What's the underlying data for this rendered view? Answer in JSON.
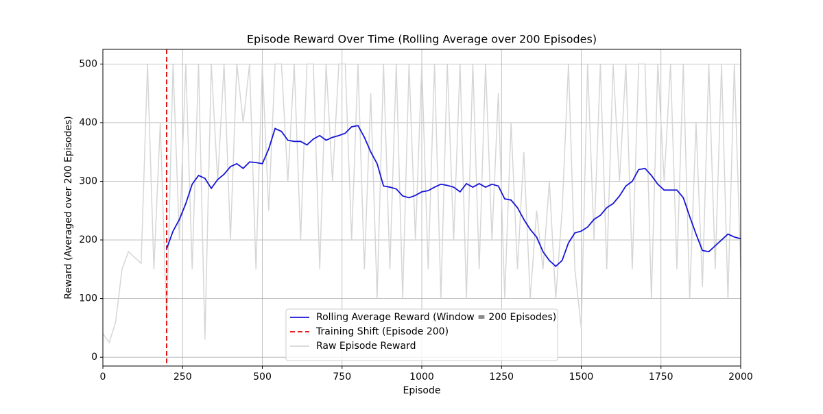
{
  "chart_data": {
    "type": "line",
    "title": "Episode Reward Over Time (Rolling Average over 200 Episodes)",
    "xlabel": "Episode",
    "ylabel": "Reward (Averaged over 200 Episodes)",
    "xlim": [
      0,
      2000
    ],
    "ylim": [
      -15,
      525
    ],
    "xticks": [
      0,
      250,
      500,
      750,
      1000,
      1250,
      1500,
      1750,
      2000
    ],
    "yticks": [
      0,
      100,
      200,
      300,
      400,
      500
    ],
    "grid": true,
    "legend": "lower center",
    "series": [
      {
        "name": "Rolling Average Reward (Window = 200 Episodes)",
        "color": "#1414d8",
        "linestyle": "solid",
        "x": [
          200,
          220,
          240,
          260,
          280,
          300,
          320,
          340,
          360,
          380,
          400,
          420,
          440,
          460,
          480,
          500,
          520,
          540,
          560,
          580,
          600,
          620,
          640,
          660,
          680,
          700,
          720,
          740,
          760,
          780,
          800,
          820,
          840,
          860,
          880,
          900,
          920,
          940,
          960,
          980,
          1000,
          1020,
          1040,
          1060,
          1080,
          1100,
          1120,
          1140,
          1160,
          1180,
          1200,
          1220,
          1240,
          1260,
          1280,
          1300,
          1320,
          1340,
          1360,
          1380,
          1400,
          1420,
          1440,
          1460,
          1480,
          1500,
          1520,
          1540,
          1560,
          1580,
          1600,
          1620,
          1640,
          1660,
          1680,
          1700,
          1720,
          1740,
          1760,
          1780,
          1800,
          1820,
          1840,
          1860,
          1880,
          1900,
          1920,
          1940,
          1960,
          1980,
          2000
        ],
        "values": [
          185,
          215,
          235,
          262,
          295,
          310,
          305,
          288,
          303,
          312,
          325,
          330,
          322,
          333,
          332,
          330,
          355,
          390,
          385,
          370,
          368,
          368,
          362,
          372,
          378,
          370,
          375,
          378,
          382,
          393,
          395,
          375,
          350,
          330,
          292,
          290,
          287,
          275,
          272,
          276,
          282,
          284,
          290,
          295,
          293,
          290,
          282,
          296,
          290,
          296,
          290,
          295,
          292,
          270,
          268,
          255,
          235,
          218,
          205,
          180,
          165,
          155,
          165,
          195,
          212,
          215,
          222,
          235,
          242,
          255,
          262,
          275,
          292,
          300,
          320,
          322,
          310,
          295,
          285,
          285,
          285,
          272,
          240,
          210,
          182,
          180,
          190,
          200,
          210,
          205,
          202
        ]
      },
      {
        "name": "Training Shift (Episode 200)",
        "color": "#e00000",
        "linestyle": "dashed",
        "x": [
          200
        ]
      },
      {
        "name": "Raw Episode Reward",
        "color": "#d6d6d6",
        "linestyle": "solid",
        "x": [
          0,
          20,
          40,
          60,
          80,
          100,
          120,
          140,
          160,
          180,
          200,
          220,
          240,
          260,
          280,
          300,
          320,
          340,
          360,
          380,
          400,
          420,
          440,
          460,
          480,
          500,
          520,
          540,
          560,
          580,
          600,
          620,
          640,
          660,
          680,
          700,
          720,
          740,
          760,
          780,
          800,
          820,
          840,
          860,
          880,
          900,
          920,
          940,
          960,
          980,
          1000,
          1020,
          1040,
          1060,
          1080,
          1100,
          1120,
          1140,
          1160,
          1180,
          1200,
          1220,
          1240,
          1260,
          1280,
          1300,
          1320,
          1340,
          1360,
          1380,
          1400,
          1420,
          1440,
          1460,
          1480,
          1500,
          1520,
          1540,
          1560,
          1580,
          1600,
          1620,
          1640,
          1660,
          1680,
          1700,
          1720,
          1740,
          1760,
          1780,
          1800,
          1820,
          1840,
          1860,
          1880,
          1900,
          1920,
          1940,
          1960,
          1980,
          2000
        ],
        "values": [
          40,
          25,
          60,
          150,
          180,
          170,
          160,
          500,
          150,
          400,
          60,
          500,
          200,
          500,
          150,
          500,
          30,
          500,
          300,
          500,
          200,
          500,
          400,
          500,
          150,
          500,
          250,
          500,
          500,
          300,
          500,
          200,
          500,
          500,
          150,
          500,
          300,
          500,
          500,
          200,
          500,
          150,
          450,
          100,
          500,
          150,
          500,
          100,
          500,
          200,
          500,
          150,
          500,
          100,
          500,
          200,
          500,
          100,
          500,
          150,
          500,
          200,
          450,
          100,
          400,
          150,
          350,
          100,
          250,
          150,
          300,
          100,
          250,
          500,
          150,
          50,
          500,
          200,
          500,
          150,
          500,
          300,
          500,
          150,
          500,
          500,
          100,
          500,
          300,
          500,
          150,
          500,
          100,
          400,
          120,
          500,
          150,
          500,
          100,
          500,
          150
        ]
      }
    ]
  }
}
